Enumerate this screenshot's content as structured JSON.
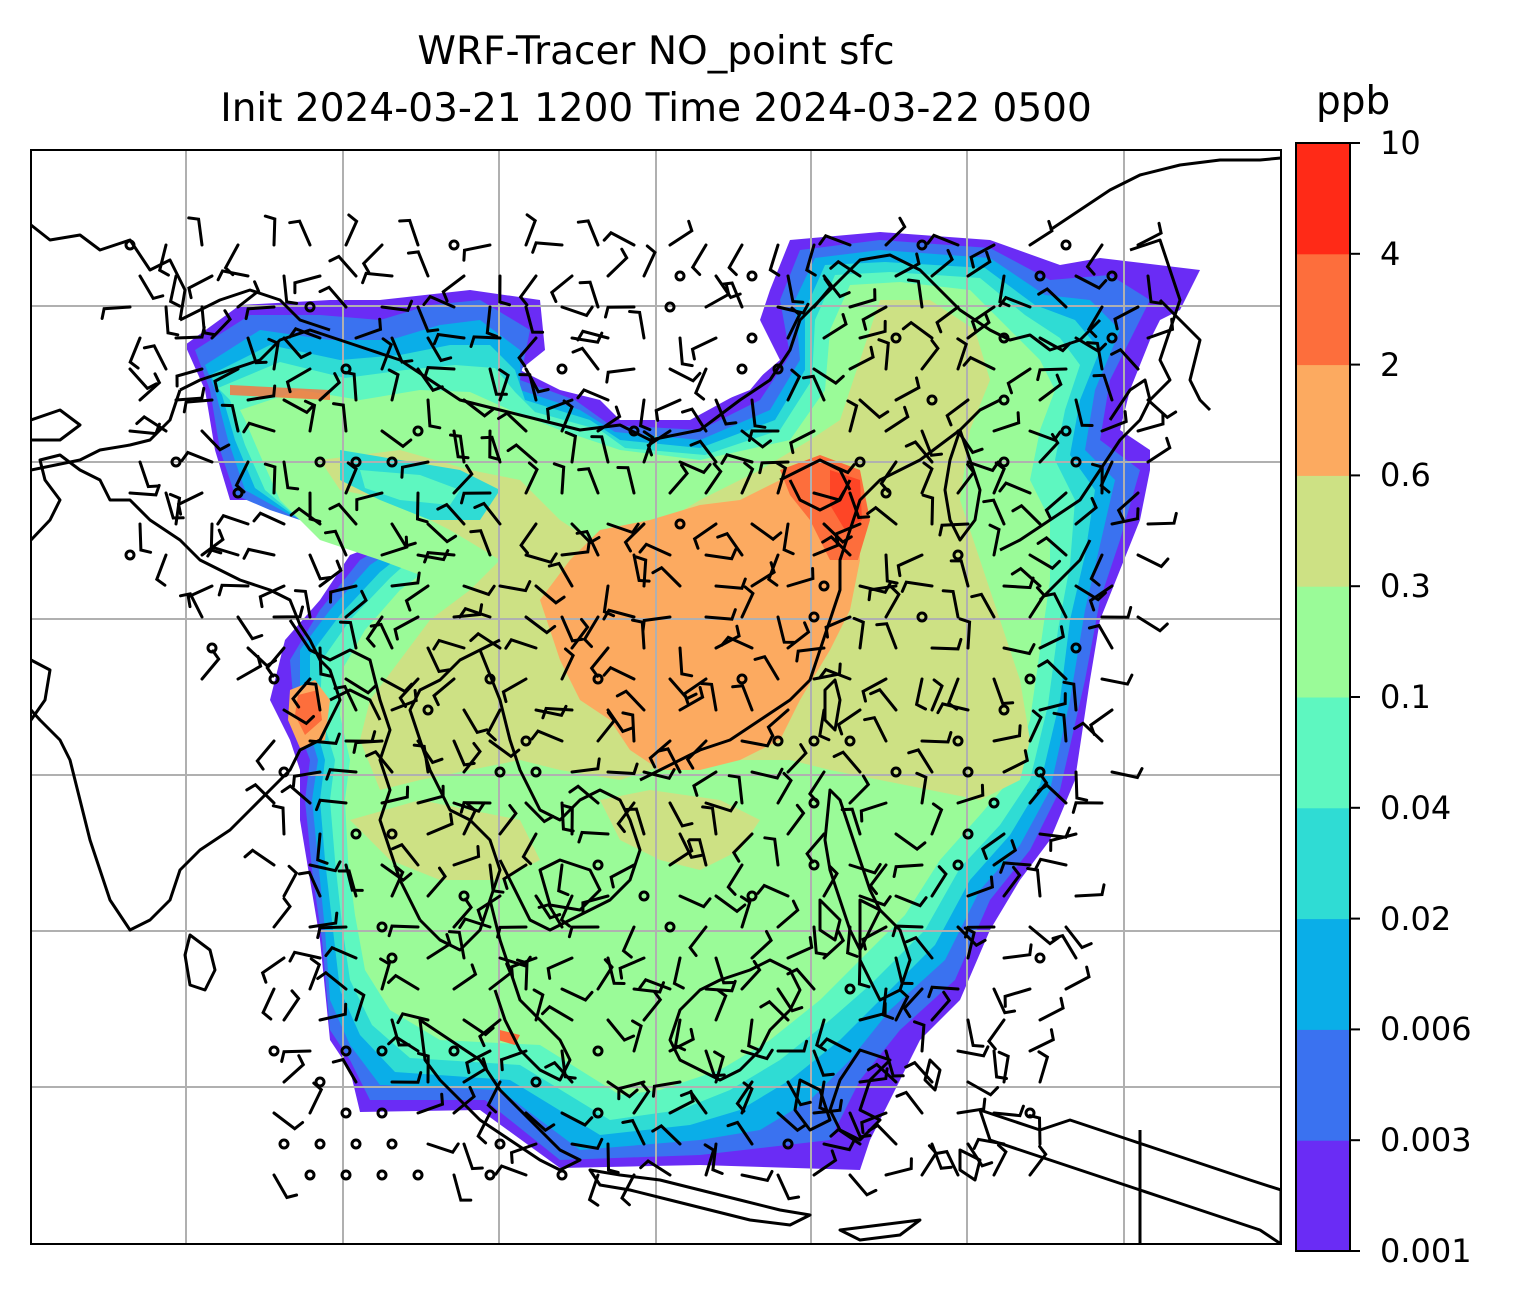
{
  "title": {
    "line1": "WRF-Tracer NO_point sfc",
    "line2": "Init 2024-03-21 1200 Time 2024-03-22 0500"
  },
  "colorbar": {
    "label": "ppb",
    "ticks": [
      "0.001",
      "0.003",
      "0.006",
      "0.02",
      "0.04",
      "0.1",
      "0.3",
      "0.6",
      "2",
      "4",
      "10"
    ],
    "colors": [
      "#6a2cf5",
      "#3a72f0",
      "#0aaee8",
      "#2fdcd4",
      "#5ef7c0",
      "#9afb98",
      "#cde184",
      "#fcaa60",
      "#fd6e3c",
      "#ff2a17"
    ]
  },
  "map": {
    "coastline_color": "#000000",
    "gridline_color": "#b0b0b0",
    "wind_barb_color": "#000000",
    "calm_symbol": "circle"
  }
}
